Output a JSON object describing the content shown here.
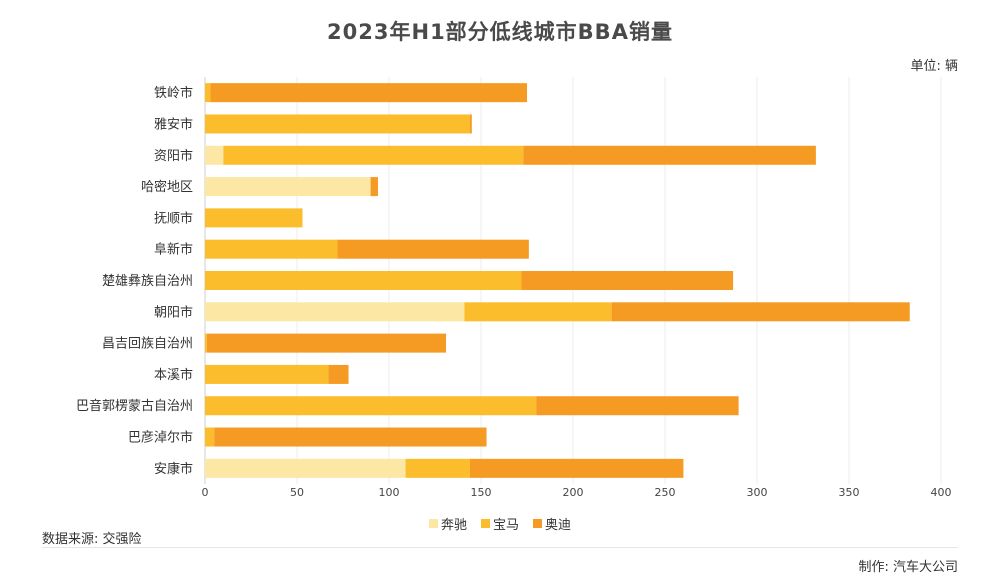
{
  "header": {
    "title": "2023年H1部分低线城市BBA销量",
    "unit": "单位: 辆"
  },
  "footer": {
    "source": "数据来源: 交强险",
    "maker": "制作: 汽车大公司"
  },
  "colors": {
    "benz": "#fce7a4",
    "bmw": "#fbbd2c",
    "audi": "#f59a23"
  },
  "chart_data": {
    "type": "bar",
    "orientation": "horizontal",
    "stacked": true,
    "categories": [
      "铁岭市",
      "雅安市",
      "资阳市",
      "哈密地区",
      "抚顺市",
      "阜新市",
      "楚雄彝族自治州",
      "朝阳市",
      "昌吉回族自治州",
      "本溪市",
      "巴音郭楞蒙古自治州",
      "巴彦淖尔市",
      "安康市"
    ],
    "series": [
      {
        "name": "奔驰",
        "color": "#fce7a4",
        "values": [
          0,
          0,
          10,
          90,
          0,
          0,
          0,
          141,
          0,
          0,
          0,
          0,
          109
        ]
      },
      {
        "name": "宝马",
        "color": "#fbbd2c",
        "values": [
          3,
          144,
          163,
          0,
          53,
          72,
          172,
          80,
          1,
          67,
          180,
          5,
          35
        ]
      },
      {
        "name": "奥迪",
        "color": "#f59a23",
        "values": [
          172,
          1,
          159,
          4,
          0,
          104,
          115,
          162,
          130,
          11,
          110,
          148,
          116
        ]
      }
    ],
    "xlim": [
      0,
      400
    ],
    "xticks": [
      "0",
      "50",
      "100",
      "150",
      "200",
      "250",
      "300",
      "350",
      "400"
    ],
    "grid": true,
    "legend": "bottom"
  }
}
